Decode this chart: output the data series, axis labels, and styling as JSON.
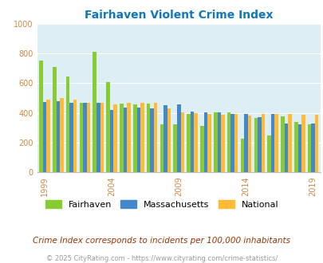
{
  "title": "Fairhaven Violent Crime Index",
  "years": [
    1999,
    2000,
    2001,
    2002,
    2003,
    2004,
    2005,
    2006,
    2007,
    2008,
    2009,
    2010,
    2011,
    2012,
    2013,
    2014,
    2015,
    2016,
    2017,
    2018,
    2019
  ],
  "fairhaven": [
    750,
    710,
    645,
    470,
    810,
    605,
    460,
    455,
    460,
    320,
    320,
    395,
    310,
    405,
    405,
    225,
    365,
    245,
    375,
    340,
    325
  ],
  "massachusetts": [
    475,
    480,
    470,
    470,
    470,
    420,
    435,
    435,
    430,
    450,
    455,
    410,
    405,
    405,
    395,
    395,
    370,
    395,
    330,
    325,
    330
  ],
  "national": [
    490,
    500,
    490,
    465,
    465,
    455,
    465,
    465,
    470,
    430,
    405,
    400,
    395,
    385,
    395,
    380,
    395,
    395,
    390,
    385,
    385
  ],
  "fairhaven_color": "#88cc33",
  "massachusetts_color": "#4488cc",
  "national_color": "#ffbb33",
  "plot_bg": "#ddeef5",
  "ylim": [
    0,
    1000
  ],
  "yticks": [
    0,
    200,
    400,
    600,
    800,
    1000
  ],
  "xtick_labels": [
    "1999",
    "2004",
    "2009",
    "2014",
    "2019"
  ],
  "xtick_year_positions": [
    1999,
    2004,
    2009,
    2014,
    2019
  ],
  "tick_color": "#cc8844",
  "legend_labels": [
    "Fairhaven",
    "Massachusetts",
    "National"
  ],
  "subtitle": "Crime Index corresponds to incidents per 100,000 inhabitants",
  "footer": "© 2025 CityRating.com - https://www.cityrating.com/crime-statistics/",
  "title_color": "#1177bb",
  "subtitle_color": "#993300",
  "footer_color": "#999999"
}
